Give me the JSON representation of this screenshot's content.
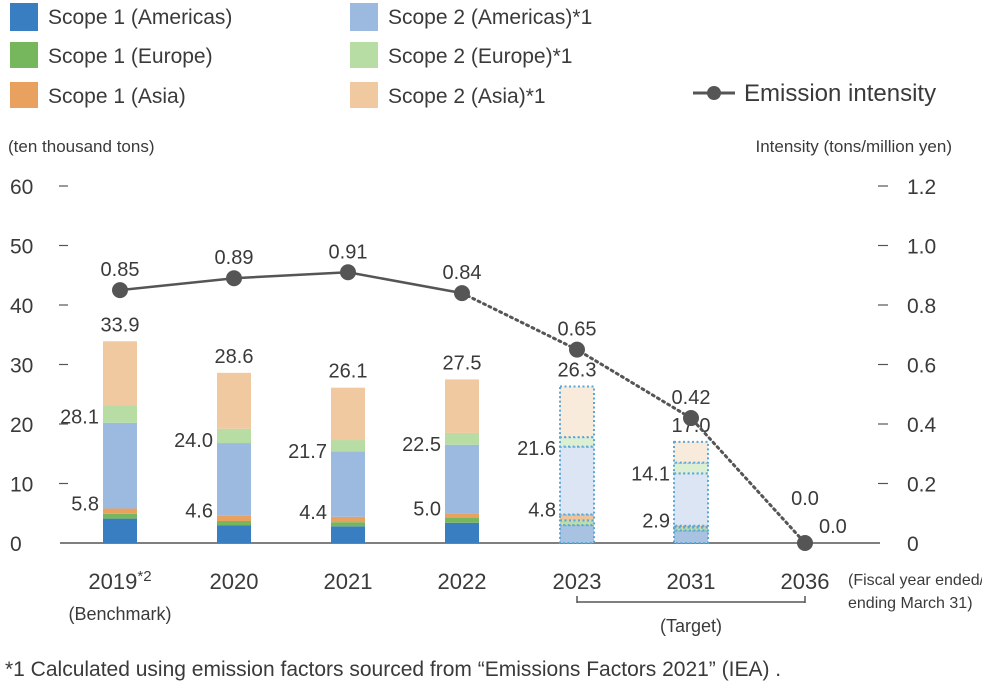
{
  "chart_data": {
    "type": "bar",
    "stacked": true,
    "secondary_axis": true,
    "categories": [
      "2019",
      "2020",
      "2021",
      "2022",
      "2023",
      "2031",
      "2036"
    ],
    "category_superscripts": [
      "*2",
      "",
      "",
      "",
      "",
      "",
      ""
    ],
    "category_sublabels": [
      "(Benchmark)",
      "",
      "",
      "",
      "",
      "",
      ""
    ],
    "target_bracket_label": "(Target)",
    "target_categories": [
      "2023",
      "2031",
      "2036"
    ],
    "x_note_line1": "(Fiscal year ended/",
    "x_note_line2": "ending March 31)",
    "ylabel_left": "(ten thousand tons)",
    "ylabel_right": "Intensity (tons/million yen)",
    "ylim_left": [
      0,
      60
    ],
    "ylim_right": [
      0,
      1.2
    ],
    "yticks_left": [
      0,
      10,
      20,
      30,
      40,
      50,
      60
    ],
    "yticks_right": [
      "0",
      "0.2",
      "0.4",
      "0.6",
      "0.8",
      "1.0",
      "1.2"
    ],
    "series": [
      {
        "name": "Scope 1 (Americas)",
        "color": "#3a7ec2",
        "values": [
          4.1,
          3.0,
          2.8,
          3.4,
          3.0,
          2.1,
          0
        ]
      },
      {
        "name": "Scope 1 (Europe)",
        "color": "#76b75e",
        "values": [
          0.8,
          0.7,
          0.7,
          0.8,
          0.8,
          0.5,
          0
        ]
      },
      {
        "name": "Scope 1 (Asia)",
        "color": "#e9a15f",
        "values": [
          0.9,
          0.9,
          0.9,
          0.8,
          1.0,
          0.3,
          0
        ]
      },
      {
        "name": "Scope 2 (Americas)*1",
        "color": "#9cbae0",
        "values": [
          14.4,
          12.2,
          11.0,
          11.5,
          11.4,
          8.8,
          0
        ]
      },
      {
        "name": "Scope 2 (Europe)*1",
        "color": "#b7dca4",
        "values": [
          2.9,
          2.4,
          1.9,
          2.0,
          1.6,
          1.8,
          0
        ]
      },
      {
        "name": "Scope 2 (Asia)*1",
        "color": "#f1c9a0",
        "values": [
          10.8,
          9.4,
          8.8,
          9.0,
          8.5,
          3.5,
          0
        ]
      }
    ],
    "target_fill_colors": [
      "#a8c2e2",
      "#bcdcaa",
      "#f0c49a",
      "#dbe5f3",
      "#dcefd4",
      "#f9ebdc"
    ],
    "target_border_color": "#5aa7d6",
    "bar_totals": [
      "33.9",
      "28.6",
      "26.1",
      "27.5",
      "26.3",
      "17.0",
      "0.0"
    ],
    "scope2_start_labels": [
      "28.1",
      "24.0",
      "21.7",
      "22.5",
      "21.6",
      "14.1",
      ""
    ],
    "scope1_totals": [
      "5.8",
      "4.6",
      "4.4",
      "5.0",
      "4.8",
      "2.9",
      ""
    ],
    "line_series": {
      "name": "Emission intensity",
      "color": "#555555",
      "values": [
        0.85,
        0.89,
        0.91,
        0.84,
        0.65,
        0.42,
        0.0
      ],
      "labels": [
        "0.85",
        "0.89",
        "0.91",
        "0.84",
        "0.65",
        "0.42",
        "0.0"
      ],
      "dotted_from_index": 3
    },
    "legend": {
      "placement": "top",
      "items": [
        "Scope 1 (Americas)",
        "Scope 1 (Europe)",
        "Scope 1 (Asia)",
        "Scope 2 (Americas)*1",
        "Scope 2 (Europe)*1",
        "Scope 2 (Asia)*1",
        "Emission intensity"
      ]
    },
    "footnote": "*1 Calculated using emission factors sourced from “Emissions Factors 2021” (IEA) ."
  }
}
